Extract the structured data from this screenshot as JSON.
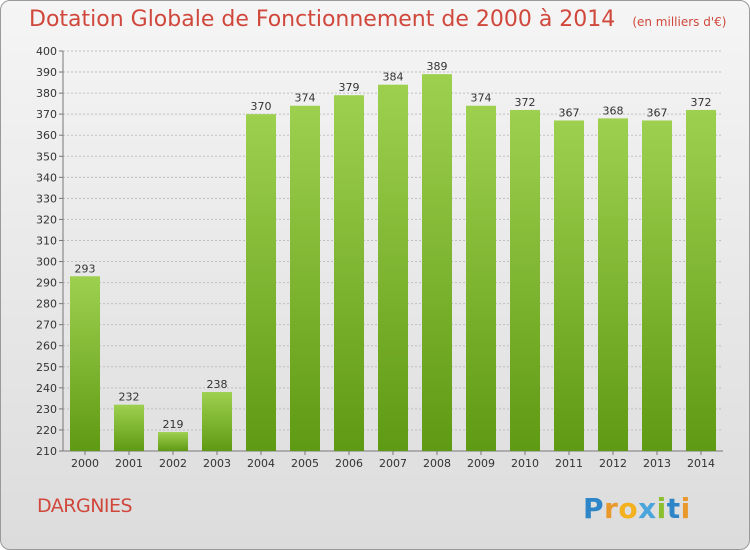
{
  "title": "Dotation Globale de Fonctionnement de 2000 à 2014",
  "subtitle": "(en milliers d'€)",
  "commune": "DARGNIES",
  "logo_text": "Proxiti",
  "colors": {
    "title": "#d0483c",
    "bar_top": "#9ed04f",
    "bar_bottom": "#5f9a14"
  },
  "chart_data": {
    "type": "bar",
    "categories": [
      "2000",
      "2001",
      "2002",
      "2003",
      "2004",
      "2005",
      "2006",
      "2007",
      "2008",
      "2009",
      "2010",
      "2011",
      "2012",
      "2013",
      "2014"
    ],
    "values": [
      293,
      232,
      219,
      238,
      370,
      374,
      379,
      384,
      389,
      374,
      372,
      367,
      368,
      367,
      372
    ],
    "ylim": [
      210,
      400
    ],
    "ytick_step": 10,
    "grid": true,
    "xlabel": "",
    "ylabel": ""
  }
}
